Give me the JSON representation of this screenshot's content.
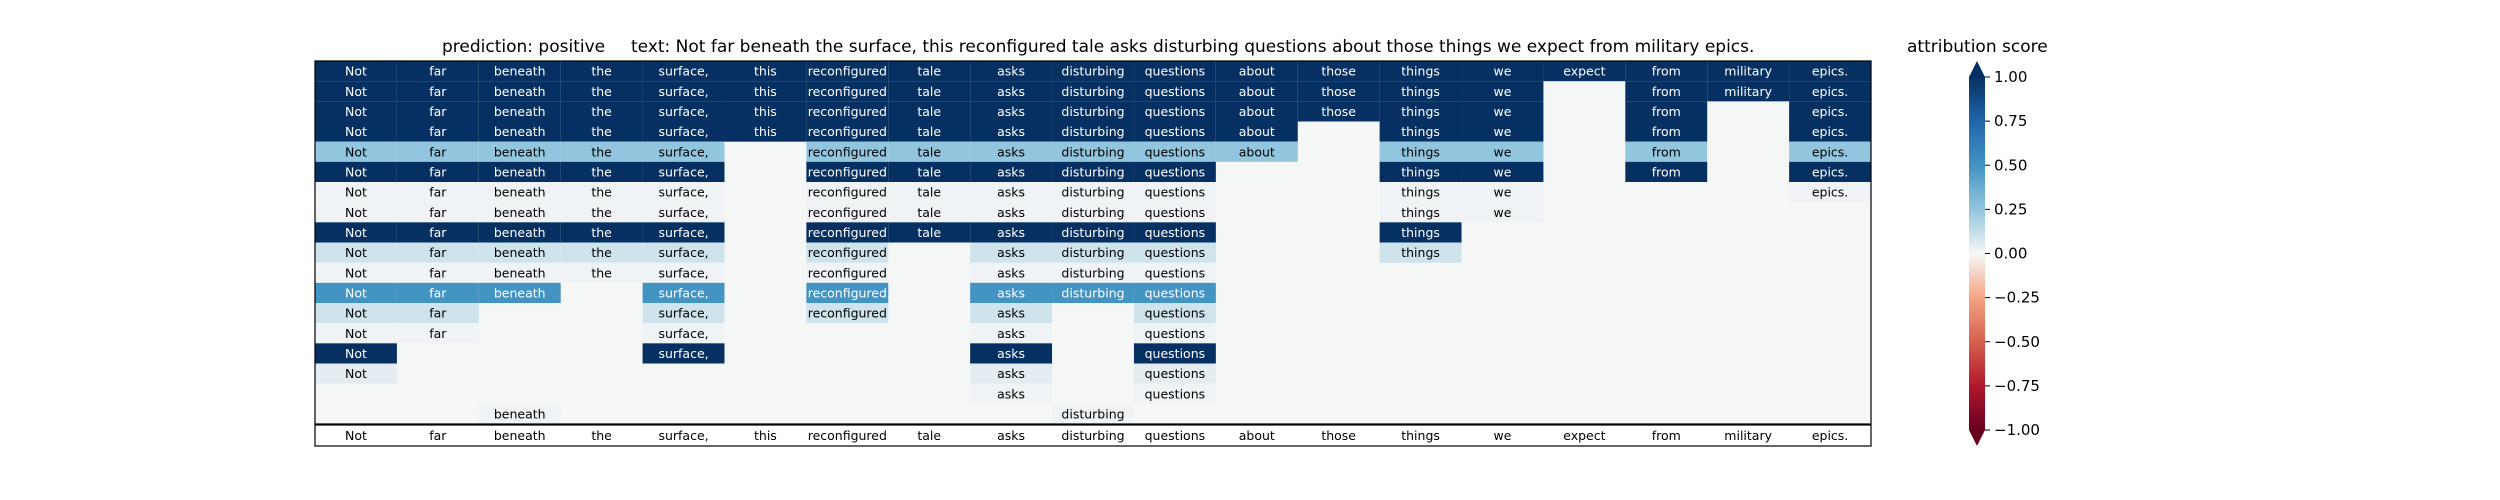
{
  "chart_data": {
    "type": "heatmap",
    "title_prediction": "prediction:  positive",
    "title_text": "text:  Not far beneath the surface, this reconfigured tale asks disturbing questions about those things we expect from military epics.",
    "colorbar_label": "attribution score",
    "colormap": "RdBu",
    "vmin": -1.0,
    "vmax": 1.0,
    "colorbar_ticks": [
      "1.00",
      "0.75",
      "0.50",
      "0.25",
      "0.00",
      "−0.25",
      "−0.50",
      "−0.75",
      "−1.00"
    ],
    "tokens": [
      "Not",
      "far",
      "beneath",
      "the",
      "surface,",
      "this",
      "reconfigured",
      "tale",
      "asks",
      "disturbing",
      "questions",
      "about",
      "those",
      "things",
      "we",
      "expect",
      "from",
      "military",
      "epics."
    ],
    "rows": [
      [
        1,
        1,
        1,
        1,
        1,
        1,
        1,
        1,
        1,
        1,
        1,
        1,
        1,
        1,
        1,
        1,
        1,
        1,
        1
      ],
      [
        1,
        1,
        1,
        1,
        1,
        1,
        1,
        1,
        1,
        1,
        1,
        1,
        1,
        1,
        1,
        null,
        1,
        1,
        1
      ],
      [
        1,
        1,
        1,
        1,
        1,
        1,
        1,
        1,
        1,
        1,
        1,
        1,
        1,
        1,
        1,
        null,
        1,
        null,
        1
      ],
      [
        1,
        1,
        1,
        1,
        1,
        1,
        1,
        1,
        1,
        1,
        1,
        1,
        null,
        1,
        1,
        null,
        1,
        null,
        1
      ],
      [
        0.25,
        0.25,
        0.25,
        0.25,
        0.25,
        null,
        0.25,
        0.25,
        0.25,
        0.25,
        0.25,
        0.25,
        null,
        0.25,
        0.25,
        null,
        0.25,
        null,
        0.25
      ],
      [
        1,
        1,
        1,
        1,
        1,
        null,
        1,
        1,
        1,
        1,
        1,
        null,
        null,
        1,
        1,
        null,
        1,
        null,
        1
      ],
      [
        0.02,
        0.02,
        0.02,
        0.02,
        0.02,
        null,
        0.02,
        0.02,
        0.02,
        0.02,
        0.02,
        null,
        null,
        0.02,
        0.02,
        null,
        null,
        null,
        0.02
      ],
      [
        0.02,
        0.02,
        0.02,
        0.02,
        0.02,
        null,
        0.02,
        0.02,
        0.02,
        0.02,
        0.02,
        null,
        null,
        0.02,
        0.02,
        null,
        null,
        null,
        null
      ],
      [
        1,
        1,
        1,
        1,
        1,
        null,
        1,
        1,
        1,
        1,
        1,
        null,
        null,
        1,
        null,
        null,
        null,
        null,
        null
      ],
      [
        0.1,
        0.1,
        0.1,
        0.1,
        0.1,
        null,
        0.1,
        null,
        0.1,
        0.1,
        0.1,
        null,
        null,
        0.1,
        null,
        null,
        null,
        null,
        null
      ],
      [
        0.02,
        0.02,
        0.02,
        0.02,
        0.02,
        null,
        0.02,
        null,
        0.02,
        0.02,
        0.02,
        null,
        null,
        null,
        null,
        null,
        null,
        null,
        null
      ],
      [
        0.5,
        0.5,
        0.5,
        null,
        0.5,
        null,
        0.5,
        null,
        0.5,
        0.5,
        0.5,
        null,
        null,
        null,
        null,
        null,
        null,
        null,
        null
      ],
      [
        0.1,
        0.1,
        null,
        null,
        0.1,
        null,
        0.1,
        null,
        0.1,
        null,
        0.1,
        null,
        null,
        null,
        null,
        null,
        null,
        null,
        null
      ],
      [
        0.02,
        0.02,
        null,
        null,
        0.02,
        null,
        null,
        null,
        0.02,
        null,
        0.02,
        null,
        null,
        null,
        null,
        null,
        null,
        null,
        null
      ],
      [
        1,
        null,
        null,
        null,
        1,
        null,
        null,
        null,
        1,
        null,
        1,
        null,
        null,
        null,
        null,
        null,
        null,
        null,
        null
      ],
      [
        0.05,
        null,
        null,
        null,
        null,
        null,
        null,
        null,
        0.05,
        null,
        0.05,
        null,
        null,
        null,
        null,
        null,
        null,
        null,
        null
      ],
      [
        null,
        null,
        null,
        null,
        null,
        null,
        null,
        null,
        0.02,
        null,
        0.02,
        null,
        null,
        null,
        null,
        null,
        null,
        null,
        null
      ],
      [
        null,
        null,
        0.02,
        null,
        null,
        null,
        null,
        null,
        null,
        0.02,
        null,
        null,
        null,
        null,
        null,
        null,
        null,
        null,
        null
      ]
    ],
    "bottom_row": [
      "Not",
      "far",
      "beneath",
      "the",
      "surface,",
      "this",
      "reconfigured",
      "tale",
      "asks",
      "disturbing",
      "questions",
      "about",
      "those",
      "things",
      "we",
      "expect",
      "from",
      "military",
      "epics."
    ],
    "grid": false
  }
}
